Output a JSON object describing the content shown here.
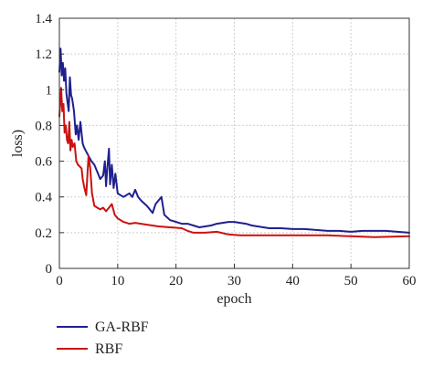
{
  "chart_data": {
    "type": "line",
    "title": "",
    "xlabel": "epoch",
    "ylabel": "loss)",
    "xlim": [
      0,
      60
    ],
    "ylim": [
      0,
      1.4
    ],
    "xticks": [
      0,
      10,
      20,
      30,
      40,
      50,
      60
    ],
    "xtick_labels": [
      "0",
      "10",
      "20",
      "30",
      "40",
      "50",
      "60"
    ],
    "yticks": [
      0,
      0.2,
      0.4,
      0.6,
      0.8,
      1.0,
      1.2,
      1.4
    ],
    "ytick_labels": [
      "0",
      "0.2",
      "0.4",
      "0.6",
      "0.8",
      "1",
      "1.2",
      "1.4"
    ],
    "grid": true,
    "legend_position": "below",
    "series": [
      {
        "name": "GA-RBF",
        "color": "#1f1f8f",
        "x": [
          0,
          0.2,
          0.4,
          0.6,
          0.8,
          1.0,
          1.2,
          1.4,
          1.6,
          1.8,
          2.0,
          2.2,
          2.5,
          2.8,
          3.0,
          3.3,
          3.6,
          4.0,
          4.2,
          4.5,
          5.0,
          5.5,
          6.0,
          6.5,
          7.0,
          7.5,
          7.8,
          8.0,
          8.2,
          8.5,
          8.7,
          9.0,
          9.3,
          9.6,
          10.0,
          10.5,
          11.0,
          12.0,
          12.5,
          13.0,
          13.5,
          14.0,
          15.0,
          16.0,
          16.5,
          17.0,
          17.5,
          18.0,
          19.0,
          20.0,
          21.0,
          22.0,
          23.0,
          24.0,
          25.0,
          26.0,
          27.0,
          28.0,
          29.0,
          30.0,
          31.0,
          32.0,
          33.0,
          34.0,
          35.0,
          36.0,
          38.0,
          40.0,
          42.0,
          44.0,
          46.0,
          48.0,
          50.0,
          52.0,
          54.0,
          56.0,
          58.0,
          60.0
        ],
        "y": [
          1.1,
          1.23,
          1.08,
          1.15,
          1.05,
          1.12,
          0.98,
          0.93,
          0.88,
          1.07,
          0.97,
          0.95,
          0.88,
          0.75,
          0.8,
          0.72,
          0.82,
          0.7,
          0.68,
          0.66,
          0.63,
          0.6,
          0.58,
          0.54,
          0.5,
          0.52,
          0.6,
          0.46,
          0.55,
          0.67,
          0.47,
          0.58,
          0.45,
          0.53,
          0.42,
          0.41,
          0.4,
          0.42,
          0.4,
          0.44,
          0.4,
          0.38,
          0.35,
          0.31,
          0.36,
          0.38,
          0.4,
          0.3,
          0.27,
          0.26,
          0.25,
          0.25,
          0.24,
          0.23,
          0.235,
          0.24,
          0.25,
          0.255,
          0.26,
          0.26,
          0.255,
          0.25,
          0.24,
          0.235,
          0.23,
          0.225,
          0.225,
          0.22,
          0.22,
          0.215,
          0.21,
          0.21,
          0.205,
          0.21,
          0.21,
          0.21,
          0.205,
          0.2
        ]
      },
      {
        "name": "RBF",
        "color": "#cc1111",
        "x": [
          0,
          0.3,
          0.5,
          0.7,
          0.9,
          1.1,
          1.3,
          1.5,
          1.7,
          1.9,
          2.1,
          2.3,
          2.6,
          2.9,
          3.2,
          3.5,
          3.8,
          4.0,
          4.3,
          4.6,
          5.0,
          5.3,
          5.6,
          6.0,
          6.5,
          7.0,
          7.5,
          8.0,
          8.5,
          9.0,
          9.5,
          10.0,
          11.0,
          12.0,
          13.0,
          14.0,
          15.0,
          17.0,
          19.0,
          21.0,
          22.0,
          23.0,
          25.0,
          27.0,
          29.0,
          31.0,
          34.0,
          38.0,
          42.0,
          46.0,
          50.0,
          54.0,
          57.0,
          60.0
        ],
        "y": [
          0.85,
          1.01,
          0.88,
          0.92,
          0.76,
          0.8,
          0.72,
          0.7,
          0.82,
          0.66,
          0.72,
          0.68,
          0.7,
          0.6,
          0.58,
          0.57,
          0.56,
          0.5,
          0.45,
          0.41,
          0.63,
          0.56,
          0.42,
          0.35,
          0.34,
          0.33,
          0.34,
          0.32,
          0.34,
          0.36,
          0.3,
          0.28,
          0.26,
          0.25,
          0.255,
          0.25,
          0.245,
          0.235,
          0.23,
          0.225,
          0.21,
          0.2,
          0.2,
          0.205,
          0.19,
          0.185,
          0.185,
          0.185,
          0.185,
          0.185,
          0.18,
          0.175,
          0.178,
          0.18
        ]
      }
    ]
  }
}
